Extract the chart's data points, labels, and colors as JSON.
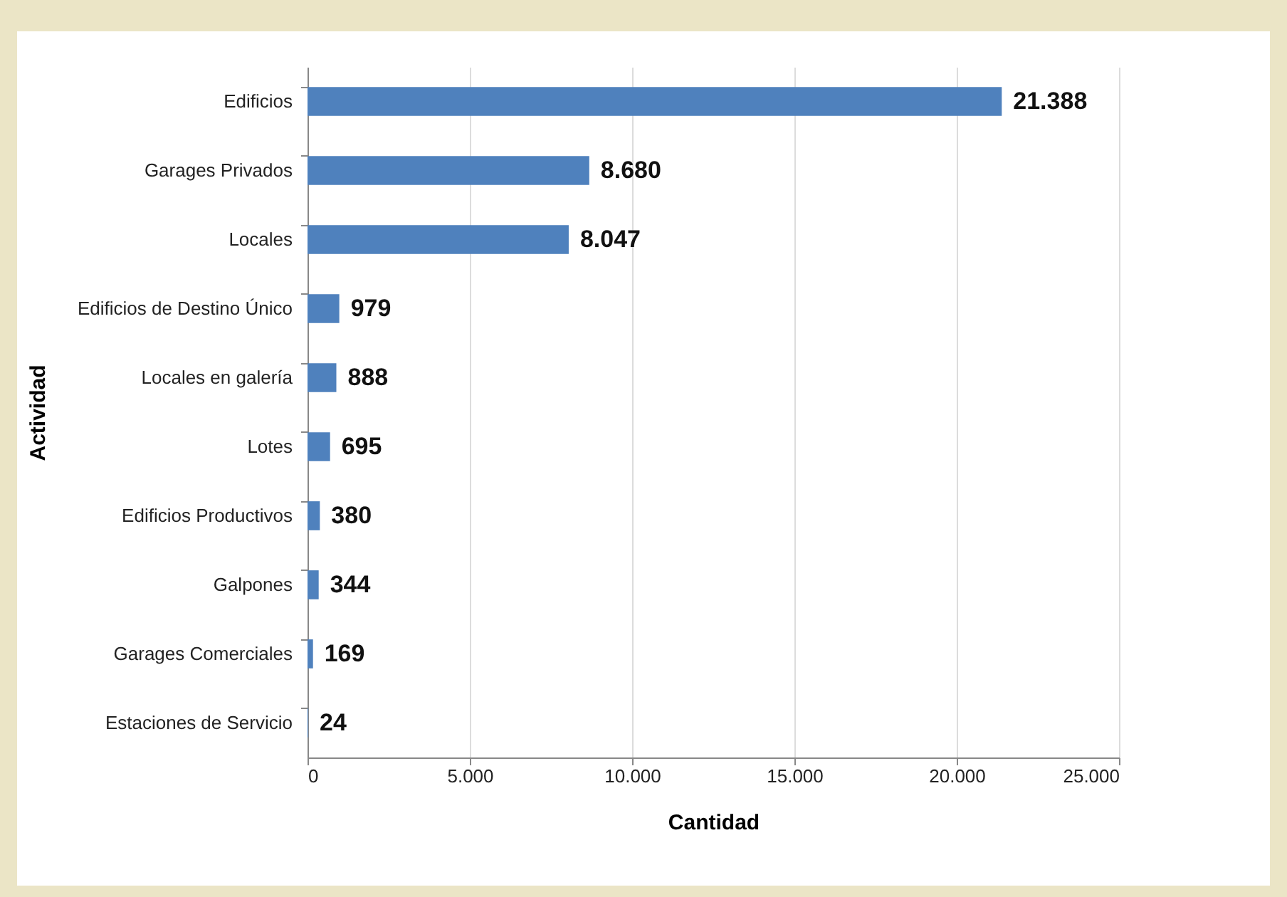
{
  "chart_data": {
    "type": "bar",
    "orientation": "horizontal",
    "xlabel": "Cantidad",
    "ylabel": "Actividad",
    "categories": [
      "Edificios",
      "Garages Privados",
      "Locales",
      "Edificios de Destino Único",
      "Locales en galería",
      "Lotes",
      "Edificios Productivos",
      "Galpones",
      "Garages Comerciales",
      "Estaciones de Servicio"
    ],
    "values": [
      21388,
      8680,
      8047,
      979,
      888,
      695,
      380,
      344,
      169,
      24
    ],
    "value_labels": [
      "21.388",
      "8.680",
      "8.047",
      "979",
      "888",
      "695",
      "380",
      "344",
      "169",
      "24"
    ],
    "color": "#4f81bd",
    "xlim": [
      0,
      25000
    ],
    "xticks": [
      0,
      {
        "value": 5000,
        "label": "5.000"
      },
      {
        "value": 10000,
        "label": "10.000"
      },
      {
        "value": 15000,
        "label": "15.000"
      },
      {
        "value": 20000,
        "label": "20.000"
      },
      {
        "value": 25000,
        "label": "25.000"
      }
    ],
    "grid": "x"
  }
}
